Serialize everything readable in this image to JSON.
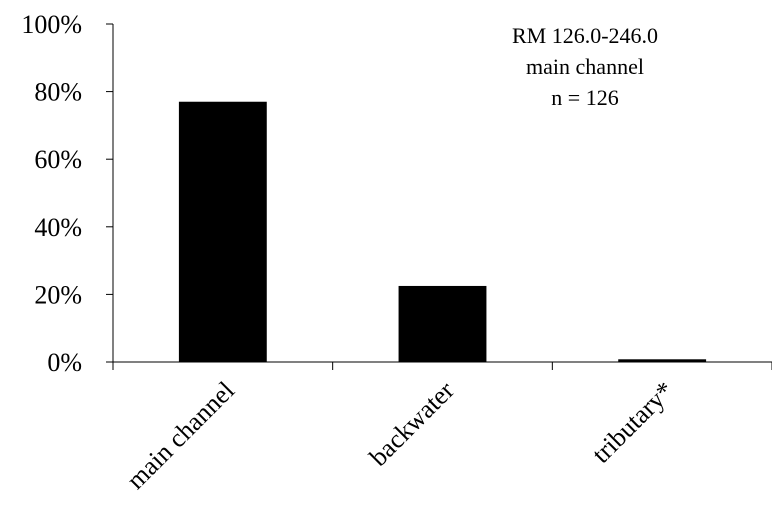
{
  "chart_data": {
    "type": "bar",
    "categories": [
      "main channel",
      "backwater",
      "tributary*"
    ],
    "values": [
      77,
      22.5,
      0.8
    ],
    "ylim": [
      0,
      100
    ],
    "yticks": [
      0,
      20,
      40,
      60,
      80,
      100
    ],
    "ytick_labels": [
      "0%",
      "20%",
      "40%",
      "60%",
      "80%",
      "100%"
    ],
    "bar_color": "#000000",
    "grid": false,
    "annotation": [
      "RM 126.0-246.0",
      "main channel",
      "n = 126"
    ]
  }
}
